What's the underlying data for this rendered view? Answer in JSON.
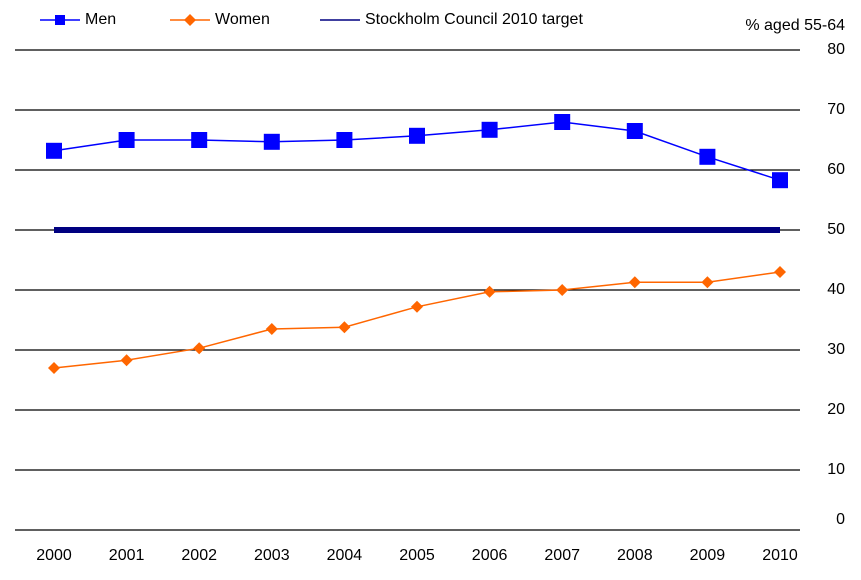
{
  "chart_data": {
    "type": "line",
    "y_label": "% aged 55-64",
    "categories": [
      "2000",
      "2001",
      "2002",
      "2003",
      "2004",
      "2005",
      "2006",
      "2007",
      "2008",
      "2009",
      "2010"
    ],
    "series": [
      {
        "name": "Men",
        "color": "#0000ff",
        "marker": "square",
        "values": [
          63.2,
          65,
          65,
          64.7,
          65,
          65.7,
          66.7,
          68,
          66.5,
          62.2,
          58.3
        ]
      },
      {
        "name": "Women",
        "color": "#ff6600",
        "marker": "diamond",
        "values": [
          27,
          28.3,
          30.3,
          33.5,
          33.8,
          37.2,
          39.7,
          40,
          41.3,
          41.3,
          43
        ]
      },
      {
        "name": "Stockholm Council 2010 target",
        "color": "#000080",
        "marker": "none",
        "values": [
          50,
          50,
          50,
          50,
          50,
          50,
          50,
          50,
          50,
          50,
          50
        ]
      }
    ],
    "ylim": [
      0,
      80
    ],
    "yticks": [
      0,
      10,
      20,
      30,
      40,
      50,
      60,
      70,
      80
    ],
    "grid": true,
    "legend": "top-left"
  }
}
